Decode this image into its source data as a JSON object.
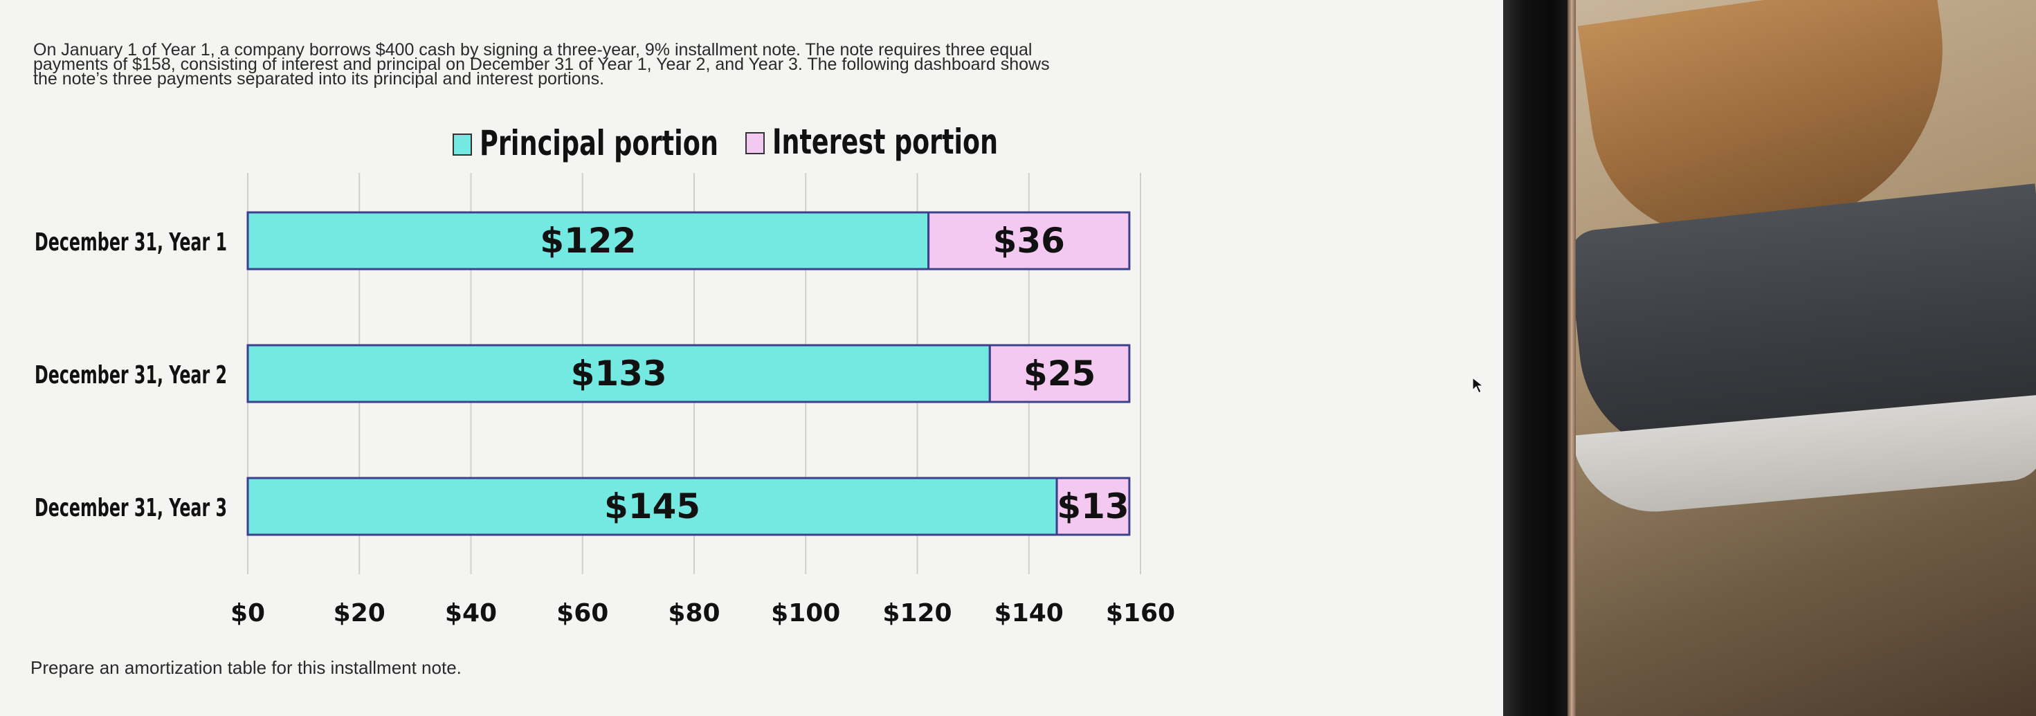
{
  "question": {
    "intro_lines": [
      "On January 1 of Year 1, a company borrows $400 cash by signing a three-year, 9% installment note. The note requires three equal",
      "payments of $158, consisting of interest and principal on December 31 of Year 1, Year 2, and Year 3. The following dashboard shows",
      "the note’s three payments separated into its principal and interest portions."
    ],
    "footer": "Prepare an amortization table for this installment note."
  },
  "chart_data": {
    "type": "bar",
    "orientation": "horizontal",
    "stacked": true,
    "categories": [
      "December 31, Year 1",
      "December 31, Year 2",
      "December 31, Year 3"
    ],
    "series": [
      {
        "name": "Principal portion",
        "values": [
          122,
          133,
          145
        ],
        "labels": [
          "$122",
          "$133",
          "$145"
        ],
        "color": "#73e9e2"
      },
      {
        "name": "Interest portion",
        "values": [
          36,
          25,
          13
        ],
        "labels": [
          "$36",
          "$25",
          "$13"
        ],
        "color": "#f4c9f1"
      }
    ],
    "xlim": [
      0,
      160
    ],
    "ticks": [
      "$0",
      "$20",
      "$40",
      "$60",
      "$80",
      "$100",
      "$120",
      "$140",
      "$160"
    ],
    "tick_values": [
      0,
      20,
      40,
      60,
      80,
      100,
      120,
      140,
      160
    ],
    "grid": true,
    "legend_position": "top"
  },
  "colors": {
    "principal": "#73e9e2",
    "interest": "#f4c9f1",
    "bar_border": "#3b3f8c",
    "gridline": "#cfcfcf"
  }
}
